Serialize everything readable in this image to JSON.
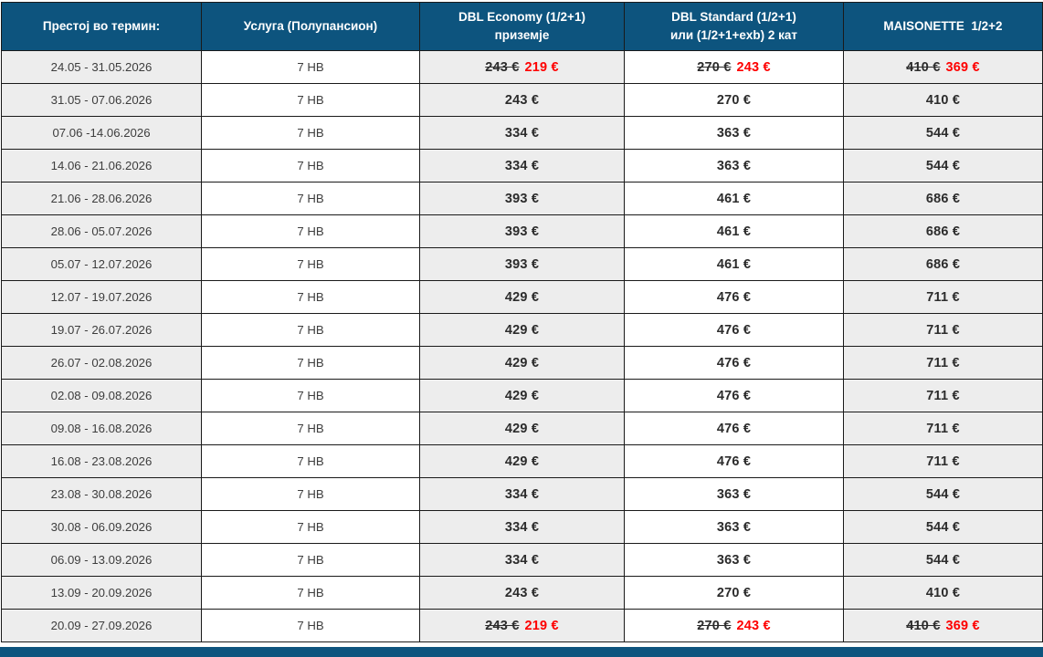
{
  "colors": {
    "header_blue": "#0d547e",
    "shaded_column": "#ededed",
    "border": "#1a1a1a",
    "text_dark": "#3d3d3d",
    "price_text": "#2c2c2c",
    "discount_red": "#fe0000",
    "header_text": "#ffffff",
    "page_bg": "#ffffff"
  },
  "table": {
    "columns": [
      {
        "id": "period",
        "header_line1": "Престој во термин:",
        "header_line2": "",
        "shaded": true
      },
      {
        "id": "service",
        "header_line1": "Услуга (Полупансион)",
        "header_line2": "",
        "shaded": false
      },
      {
        "id": "dbl_economy",
        "header_line1": "DBL Economy (1/2+1)",
        "header_line2": "приземје",
        "shaded": true
      },
      {
        "id": "dbl_standard",
        "header_line1": "DBL Standard (1/2+1)",
        "header_line2": "или (1/2+1+exb) 2 кат",
        "shaded": false
      },
      {
        "id": "maisonette",
        "header_line1": "MAISONETTE  1/2+2",
        "header_line2": "",
        "shaded": true
      }
    ],
    "rows": [
      {
        "period": "24.05 - 31.05.2026",
        "service": "7 HB",
        "dbl_economy": {
          "old": "243 €",
          "new": "219 €"
        },
        "dbl_standard": {
          "old": "270 €",
          "new": "243 €"
        },
        "maisonette": {
          "old": "410 €",
          "new": "369 €"
        }
      },
      {
        "period": "31.05 - 07.06.2026",
        "service": "7 HB",
        "dbl_economy": "243 €",
        "dbl_standard": "270 €",
        "maisonette": "410 €"
      },
      {
        "period": "07.06 -14.06.2026",
        "service": "7 HB",
        "dbl_economy": "334 €",
        "dbl_standard": "363 €",
        "maisonette": "544 €"
      },
      {
        "period": "14.06 - 21.06.2026",
        "service": "7 HB",
        "dbl_economy": "334 €",
        "dbl_standard": "363 €",
        "maisonette": "544 €"
      },
      {
        "period": "21.06 - 28.06.2026",
        "service": "7 HB",
        "dbl_economy": "393 €",
        "dbl_standard": "461 €",
        "maisonette": "686 €"
      },
      {
        "period": "28.06 - 05.07.2026",
        "service": "7 HB",
        "dbl_economy": "393 €",
        "dbl_standard": "461 €",
        "maisonette": "686 €"
      },
      {
        "period": "05.07 - 12.07.2026",
        "service": "7 HB",
        "dbl_economy": "393 €",
        "dbl_standard": "461 €",
        "maisonette": "686 €"
      },
      {
        "period": "12.07 - 19.07.2026",
        "service": "7 HB",
        "dbl_economy": "429 €",
        "dbl_standard": "476 €",
        "maisonette": "711 €"
      },
      {
        "period": "19.07 - 26.07.2026",
        "service": "7 HB",
        "dbl_economy": "429 €",
        "dbl_standard": "476 €",
        "maisonette": "711 €"
      },
      {
        "period": "26.07 - 02.08.2026",
        "service": "7 HB",
        "dbl_economy": "429 €",
        "dbl_standard": "476 €",
        "maisonette": "711 €"
      },
      {
        "period": "02.08 - 09.08.2026",
        "service": "7 HB",
        "dbl_economy": "429 €",
        "dbl_standard": "476 €",
        "maisonette": "711 €"
      },
      {
        "period": "09.08 - 16.08.2026",
        "service": "7 HB",
        "dbl_economy": "429 €",
        "dbl_standard": "476 €",
        "maisonette": "711 €"
      },
      {
        "period": "16.08 - 23.08.2026",
        "service": "7 HB",
        "dbl_economy": "429 €",
        "dbl_standard": "476 €",
        "maisonette": "711 €"
      },
      {
        "period": "23.08 - 30.08.2026",
        "service": "7 HB",
        "dbl_economy": "334 €",
        "dbl_standard": "363 €",
        "maisonette": "544 €"
      },
      {
        "period": "30.08 - 06.09.2026",
        "service": "7 HB",
        "dbl_economy": "334 €",
        "dbl_standard": "363 €",
        "maisonette": "544 €"
      },
      {
        "period": "06.09 - 13.09.2026",
        "service": "7 HB",
        "dbl_economy": "334 €",
        "dbl_standard": "363 €",
        "maisonette": "544 €"
      },
      {
        "period": "13.09 - 20.09.2026",
        "service": "7 HB",
        "dbl_economy": "243 €",
        "dbl_standard": "270 €",
        "maisonette": "410 €"
      },
      {
        "period": "20.09 - 27.09.2026",
        "service": "7 HB",
        "dbl_economy": {
          "old": "243 €",
          "new": "219 €"
        },
        "dbl_standard": {
          "old": "270 €",
          "new": "243 €"
        },
        "maisonette": {
          "old": "410 €",
          "new": "369 €"
        }
      }
    ]
  },
  "footer_bar": {
    "color": "#0d547e"
  }
}
